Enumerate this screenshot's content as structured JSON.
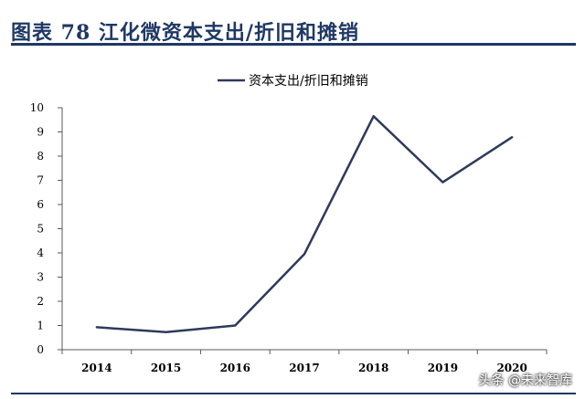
{
  "header": {
    "figure_title": "图表 78 江化微资本支出/折旧和摊销"
  },
  "colors": {
    "title": "#1f3864",
    "rule": "#1f3864",
    "series": "#2e3a5c",
    "axis": "#595959",
    "text": "#000000"
  },
  "watermark": "头条 @未来智库",
  "chart_data": {
    "type": "line",
    "title": "",
    "xlabel": "",
    "ylabel": "",
    "x": [
      "2014",
      "2015",
      "2016",
      "2017",
      "2018",
      "2019",
      "2020"
    ],
    "ylim": [
      0,
      10
    ],
    "yticks": [
      0,
      1,
      2,
      3,
      4,
      5,
      6,
      7,
      8,
      9,
      10
    ],
    "grid": false,
    "legend": "top-center",
    "series": [
      {
        "name": "资本支出/折旧和摊销",
        "values": [
          0.93,
          0.73,
          1.0,
          3.95,
          9.65,
          6.92,
          8.78
        ]
      }
    ]
  }
}
